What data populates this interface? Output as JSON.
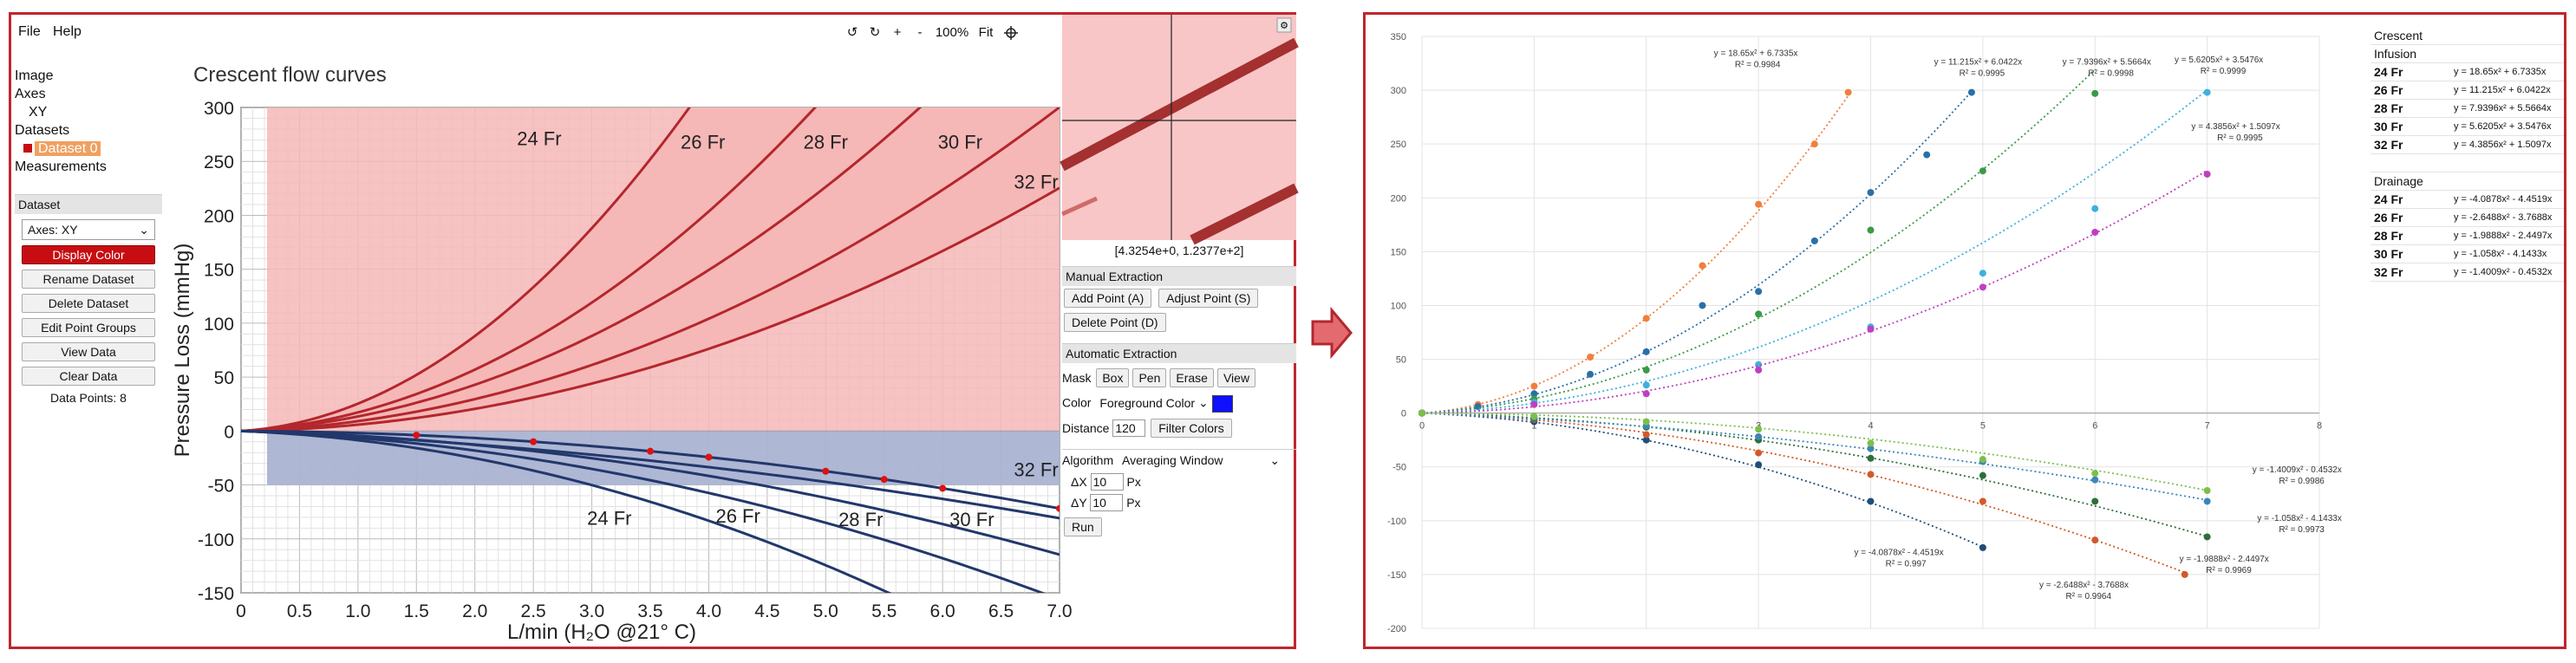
{
  "menu": {
    "file": "File",
    "help": "Help"
  },
  "toolbar": {
    "undo": "↺",
    "redo": "↻",
    "zoom_in": "+",
    "zoom_out": "-",
    "zoom": "100%",
    "fit": "Fit"
  },
  "tree": {
    "image": "Image",
    "axes": "Axes",
    "axes_item": "XY",
    "datasets": "Datasets",
    "dataset_item": "Dataset 0",
    "measurements": "Measurements"
  },
  "dataset_panel": {
    "header": "Dataset",
    "axes_select": "Axes:  XY",
    "display_color": "Display Color",
    "rename": "Rename Dataset",
    "delete": "Delete Dataset",
    "edit_groups": "Edit Point Groups",
    "view": "View Data",
    "clear": "Clear Data",
    "points_label": "Data Points: 8"
  },
  "right_panel": {
    "coords": "[4.3254e+0, 1.2377e+2]",
    "manual_header": "Manual Extraction",
    "add_point": "Add Point (A)",
    "adjust_point": "Adjust Point (S)",
    "delete_point": "Delete Point (D)",
    "auto_header": "Automatic Extraction",
    "mask_label": "Mask",
    "box": "Box",
    "pen": "Pen",
    "erase": "Erase",
    "view": "View",
    "color_label": "Color",
    "color_mode": "Foreground Color",
    "color_value": "#1010ff",
    "distance_label": "Distance",
    "distance_value": "120",
    "filter_colors": "Filter Colors",
    "algorithm_label": "Algorithm",
    "algorithm_value": "Averaging Window",
    "dx_label": "ΔX",
    "dx_value": "10",
    "dx_unit": "Px",
    "dy_label": "ΔY",
    "dy_value": "10",
    "dy_unit": "Px",
    "run": "Run"
  },
  "colors": {
    "accent": "#c0262d",
    "infusion_fill": "#f6b7b7",
    "infusion_line": "#b3272d",
    "drainage_fill": "#aab3d2",
    "drainage_line": "#22376b",
    "extracted_point": "#dd1111"
  },
  "source_chart": {
    "title": "Crescent flow curves",
    "xlabel": "L/min (H₂O @21° C)",
    "ylabel": "Pressure Loss (mmHg)",
    "x_ticks": [
      "0",
      "0.5",
      "1.0",
      "1.5",
      "2.0",
      "2.5",
      "3.0",
      "3.5",
      "4.0",
      "4.5",
      "5.0",
      "5.5",
      "6.0",
      "6.5",
      "7.0"
    ],
    "y_ticks": [
      "300",
      "250",
      "200",
      "150",
      "100",
      "50",
      "0",
      "-50",
      "-100",
      "-150"
    ],
    "infusion_labels": [
      "24 Fr",
      "26 Fr",
      "28 Fr",
      "30 Fr",
      "32 Fr"
    ],
    "drainage_labels": [
      "24 Fr",
      "26 Fr",
      "28 Fr",
      "30 Fr",
      "32 Fr"
    ]
  },
  "chart_data": {
    "type": "scatter",
    "title": "",
    "xlim": [
      0,
      8
    ],
    "ylim": [
      -200,
      350
    ],
    "x_ticks": [
      "0",
      "1",
      "2",
      "3",
      "4",
      "5",
      "6",
      "7",
      "8"
    ],
    "y_ticks": [
      "350",
      "300",
      "250",
      "200",
      "150",
      "100",
      "50",
      "0",
      "-50",
      "-100",
      "-150",
      "-200"
    ],
    "series": [
      {
        "color": "#f07f3c",
        "coef": [
          18.65,
          6.7335
        ],
        "x": [
          0,
          0.5,
          1.0,
          1.5,
          2.0,
          2.5,
          3.0,
          3.5,
          3.8
        ],
        "y": [
          0,
          8,
          25,
          52,
          88,
          137,
          194,
          250,
          298
        ],
        "eq": "y = 18.65x² + 6.7335x",
        "r2": "R² = 0.9984"
      },
      {
        "color": "#2b6fa8",
        "coef": [
          11.215,
          6.0422
        ],
        "x": [
          0,
          0.5,
          1.0,
          1.5,
          2.0,
          2.5,
          3.0,
          3.5,
          4.0,
          4.5,
          4.9
        ],
        "y": [
          0,
          6,
          18,
          36,
          57,
          100,
          113,
          160,
          205,
          240,
          298
        ],
        "eq": "y = 11.215x² + 6.0422x",
        "r2": "R² = 0.9995"
      },
      {
        "color": "#3a9a46",
        "coef": [
          7.9396,
          5.5664
        ],
        "x": [
          0,
          1,
          2,
          3,
          4,
          5,
          6
        ],
        "y": [
          0,
          13,
          40,
          92,
          170,
          225,
          297
        ],
        "eq": "y = 7.9396x² + 5.5664x",
        "r2": "R² = 0.9998"
      },
      {
        "color": "#3fb0e0",
        "coef": [
          5.6205,
          3.5476
        ],
        "x": [
          0,
          1,
          2,
          3,
          4,
          5,
          6,
          7
        ],
        "y": [
          0,
          10,
          26,
          45,
          80,
          130,
          190,
          298
        ],
        "eq": "y = 5.6205x² + 3.5476x",
        "r2": "R² = 0.9999"
      },
      {
        "color": "#c03fc0",
        "coef": [
          4.3856,
          1.5097
        ],
        "x": [
          0,
          1,
          2,
          3,
          4,
          5,
          6,
          7
        ],
        "y": [
          0,
          8,
          18,
          40,
          78,
          117,
          168,
          222
        ],
        "eq": "y = 4.3856x² + 1.5097x",
        "r2": "R² = 0.9995"
      },
      {
        "color": "#1e4e79",
        "coef": [
          -4.0878,
          -4.4519
        ],
        "x": [
          0,
          1,
          2,
          3,
          4,
          5
        ],
        "y": [
          0,
          -8,
          -25,
          -48,
          -82,
          -125
        ],
        "eq": "y = -4.0878x² - 4.4519x",
        "r2": "R² = 0.997"
      },
      {
        "color": "#d2592a",
        "coef": [
          -2.6488,
          -3.7688
        ],
        "x": [
          0,
          1,
          2,
          3,
          4,
          5,
          6,
          6.8
        ],
        "y": [
          0,
          -6,
          -20,
          -37,
          -57,
          -82,
          -118,
          -150
        ],
        "eq": "y = -2.6488x² - 3.7688x",
        "r2": "R² = 0.9964"
      },
      {
        "color": "#2e6e3a",
        "coef": [
          -1.9888,
          -2.4497
        ],
        "x": [
          0,
          1,
          2,
          3,
          4,
          5,
          6,
          7
        ],
        "y": [
          0,
          -5,
          -13,
          -25,
          -42,
          -58,
          -82,
          -115
        ],
        "eq": "y = -1.9888x² - 2.4497x",
        "r2": "R² = 0.9969"
      },
      {
        "color": "#3a86b8",
        "coef": [
          -1.058,
          -4.1433
        ],
        "x": [
          0,
          1,
          2,
          3,
          4,
          5,
          6,
          7
        ],
        "y": [
          0,
          -4,
          -12,
          -22,
          -33,
          -45,
          -62,
          -82
        ],
        "eq": "y = -1.058x² - 4.1433x",
        "r2": "R² = 0.9973"
      },
      {
        "color": "#7cbf4a",
        "coef": [
          -1.4009,
          -0.4532
        ],
        "x": [
          0,
          1,
          2,
          3,
          4,
          5,
          6,
          7
        ],
        "y": [
          0,
          -3,
          -8,
          -15,
          -28,
          -43,
          -56,
          -72
        ],
        "eq": "y = -1.4009x² - 0.4532x",
        "r2": "R² = 0.9986"
      }
    ]
  },
  "summary_table": {
    "title": "Crescent",
    "infusion": {
      "label": "Infusion",
      "rows": [
        {
          "k": "24 Fr",
          "v": "y = 18.65x² + 6.7335x"
        },
        {
          "k": "26 Fr",
          "v": "y = 11.215x² + 6.0422x"
        },
        {
          "k": "28 Fr",
          "v": "y = 7.9396x² + 5.5664x"
        },
        {
          "k": "30 Fr",
          "v": "y = 5.6205x² + 3.5476x"
        },
        {
          "k": "32 Fr",
          "v": "y = 4.3856x² + 1.5097x"
        }
      ]
    },
    "drainage": {
      "label": "Drainage",
      "rows": [
        {
          "k": "24 Fr",
          "v": "y = -4.0878x² - 4.4519x"
        },
        {
          "k": "26 Fr",
          "v": "y = -2.6488x² - 3.7688x"
        },
        {
          "k": "28 Fr",
          "v": "y = -1.9888x² - 2.4497x"
        },
        {
          "k": "30 Fr",
          "v": "y = -1.058x² - 4.1433x"
        },
        {
          "k": "32 Fr",
          "v": "y = -1.4009x² - 0.4532x"
        }
      ]
    }
  }
}
